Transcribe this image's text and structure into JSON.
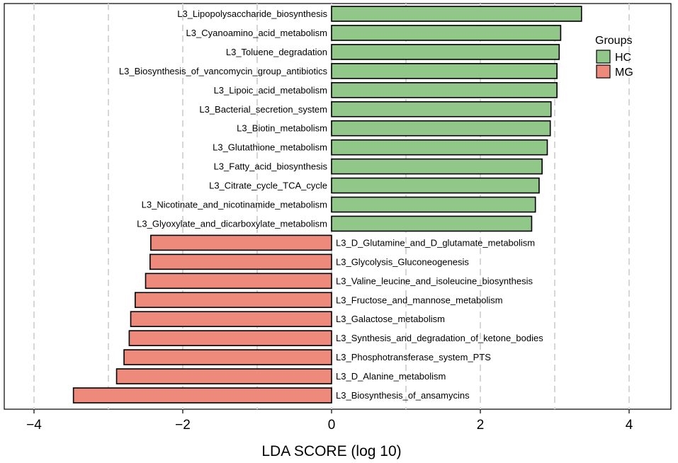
{
  "chart_data": {
    "type": "bar",
    "orientation": "horizontal",
    "xlabel": "LDA SCORE (log 10)",
    "ylabel": "",
    "xlim": [
      -4.4,
      4.6
    ],
    "xticks": [
      -4,
      -2,
      0,
      2,
      4
    ],
    "xtick_labels": [
      "−4",
      "−2",
      "0",
      "2",
      "4"
    ],
    "gridlines_x": [
      -4,
      -3,
      -2,
      -1,
      0,
      1,
      2,
      3,
      4
    ],
    "legend": {
      "title": "Groups",
      "placement": "right",
      "entries": [
        {
          "name": "HC",
          "color": "#91c88a"
        },
        {
          "name": "MG",
          "color": "#ee8a7b"
        }
      ]
    },
    "bars": [
      {
        "label": "L3_Lipopolysaccharide_biosynthesis",
        "value": 3.36,
        "group": "HC"
      },
      {
        "label": "L3_Cyanoamino_acid_metabolism",
        "value": 3.08,
        "group": "HC"
      },
      {
        "label": "L3_Toluene_degradation",
        "value": 3.06,
        "group": "HC"
      },
      {
        "label": "L3_Biosynthesis_of_vancomycin_group_antibiotics",
        "value": 3.03,
        "group": "HC"
      },
      {
        "label": "L3_Lipoic_acid_metabolism",
        "value": 3.03,
        "group": "HC"
      },
      {
        "label": "L3_Bacterial_secretion_system",
        "value": 2.95,
        "group": "HC"
      },
      {
        "label": "L3_Biotin_metabolism",
        "value": 2.94,
        "group": "HC"
      },
      {
        "label": "L3_Glutathione_metabolism",
        "value": 2.9,
        "group": "HC"
      },
      {
        "label": "L3_Fatty_acid_biosynthesis",
        "value": 2.83,
        "group": "HC"
      },
      {
        "label": "L3_Citrate_cycle_TCA_cycle",
        "value": 2.79,
        "group": "HC"
      },
      {
        "label": "L3_Nicotinate_and_nicotinamide_metabolism",
        "value": 2.74,
        "group": "HC"
      },
      {
        "label": "L3_Glyoxylate_and_dicarboxylate_metabolism",
        "value": 2.69,
        "group": "HC"
      },
      {
        "label": "L3_D_Glutamine_and_D_glutamate_metabolism",
        "value": -2.43,
        "group": "MG"
      },
      {
        "label": "L3_Glycolysis_Gluconeogenesis",
        "value": -2.44,
        "group": "MG"
      },
      {
        "label": "L3_Valine_leucine_and_isoleucine_biosynthesis",
        "value": -2.5,
        "group": "MG"
      },
      {
        "label": "L3_Fructose_and_mannose_metabolism",
        "value": -2.64,
        "group": "MG"
      },
      {
        "label": "L3_Galactose_metabolism",
        "value": -2.7,
        "group": "MG"
      },
      {
        "label": "L3_Synthesis_and_degradation_of_ketone_bodies",
        "value": -2.72,
        "group": "MG"
      },
      {
        "label": "L3_Phosphotransferase_system_PTS",
        "value": -2.79,
        "group": "MG"
      },
      {
        "label": "L3_D_Alanine_metabolism",
        "value": -2.89,
        "group": "MG"
      },
      {
        "label": "L3_Biosynthesis_of_ansamycins",
        "value": -3.47,
        "group": "MG"
      }
    ]
  }
}
